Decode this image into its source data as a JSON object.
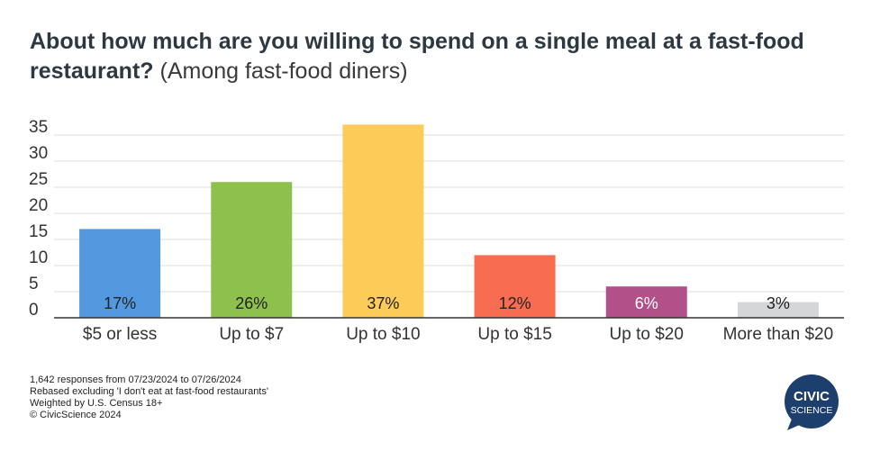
{
  "title": {
    "main": "About how much are you willing to spend on a single meal at a fast-food restaurant?",
    "sub": "(Among fast-food diners)"
  },
  "chart_data": {
    "type": "bar",
    "categories": [
      "$5 or less",
      "Up to $7",
      "Up to $10",
      "Up to $15",
      "Up to $20",
      "More than $20"
    ],
    "values": [
      17,
      26,
      37,
      12,
      6,
      3
    ],
    "data_labels": [
      "17%",
      "26%",
      "37%",
      "12%",
      "6%",
      "3%"
    ],
    "colors": [
      "#5299e0",
      "#8ec04e",
      "#fdcc58",
      "#f86d52",
      "#b15089",
      "#d5d6d8"
    ],
    "yticks": [
      0,
      5,
      10,
      15,
      20,
      25,
      30,
      35
    ],
    "ylim": [
      0,
      37
    ],
    "grid": true,
    "xlabel": "",
    "ylabel": ""
  },
  "footer": {
    "lines": [
      "1,642 responses from 07/23/2024 to 07/26/2024",
      "Rebased excluding 'I don't eat at fast-food restaurants'",
      "Weighted by U.S. Census 18+",
      "© CivicScience 2024"
    ]
  },
  "logo": {
    "line1": "CIVIC",
    "line2": "SCIENCE",
    "color": "#1d3f6e"
  }
}
